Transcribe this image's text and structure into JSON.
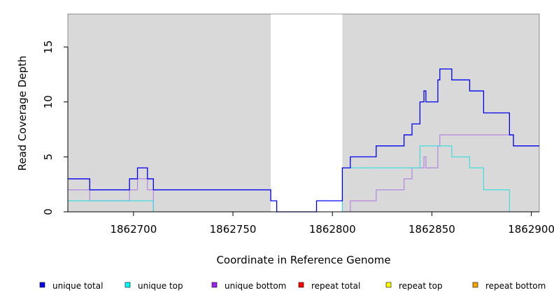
{
  "chart_data": {
    "type": "line",
    "step": true,
    "xlabel": "Coordinate in Reference Genome",
    "ylabel": "Read Coverage Depth",
    "xlim": [
      1862667,
      1862904
    ],
    "ylim": [
      0,
      18
    ],
    "x_ticks": [
      1862700,
      1862750,
      1862800,
      1862850,
      1862900
    ],
    "x_tick_labels": [
      "1862700",
      "1862750",
      "1862800",
      "1862850",
      "1862900"
    ],
    "y_ticks": [
      0,
      5,
      10,
      15
    ],
    "y_tick_labels": [
      "0",
      "5",
      "10",
      "15"
    ],
    "shaded_regions": [
      [
        1862667,
        1862769
      ],
      [
        1862805,
        1862904
      ]
    ],
    "shade_color": "#d9d9d9",
    "grid": false,
    "legend_position": "bottom",
    "series": [
      {
        "name": "unique total",
        "color": "#0000ee",
        "x": [
          1862667,
          1862678,
          1862698,
          1862702,
          1862707,
          1862710,
          1862769,
          1862772,
          1862792,
          1862805,
          1862809,
          1862822,
          1862836,
          1862840,
          1862844,
          1862846,
          1862847,
          1862853,
          1862854,
          1862860,
          1862869,
          1862876,
          1862889,
          1862891,
          1862904
        ],
        "y": [
          3,
          2,
          3,
          4,
          3,
          2,
          1,
          0,
          1,
          4,
          5,
          6,
          7,
          8,
          10,
          11,
          10,
          12,
          13,
          12,
          11,
          9,
          7,
          6,
          6
        ]
      },
      {
        "name": "unique top",
        "color": "#33dddd",
        "x": [
          1862667,
          1862678,
          1862710,
          1862805,
          1862844,
          1862860,
          1862869,
          1862876,
          1862889,
          1862904
        ],
        "y": [
          1,
          1,
          0,
          4,
          6,
          5,
          4,
          2,
          0,
          0
        ]
      },
      {
        "name": "unique bottom",
        "color": "#b07fe0",
        "x": [
          1862667,
          1862678,
          1862698,
          1862702,
          1862707,
          1862710,
          1862769,
          1862809,
          1862822,
          1862836,
          1862840,
          1862846,
          1862847,
          1862853,
          1862854,
          1862889,
          1862891,
          1862904
        ],
        "y": [
          2,
          1,
          2,
          3,
          2,
          0,
          0,
          1,
          2,
          3,
          4,
          5,
          4,
          6,
          7,
          7,
          6,
          6
        ]
      },
      {
        "name": "repeat total",
        "color": "#ff0000",
        "x": [
          1862667,
          1862904
        ],
        "y": [
          0,
          0
        ]
      },
      {
        "name": "repeat top",
        "color": "#ffff00",
        "x": [
          1862667,
          1862904
        ],
        "y": [
          0,
          0
        ]
      },
      {
        "name": "repeat bottom",
        "color": "#ffa500",
        "x": [
          1862667,
          1862904
        ],
        "y": [
          0,
          0
        ]
      }
    ]
  },
  "legend": [
    {
      "label": "unique total",
      "color": "#0000ee"
    },
    {
      "label": "unique top",
      "color": "#00ffff"
    },
    {
      "label": "unique bottom",
      "color": "#a020f0"
    },
    {
      "label": "repeat total",
      "color": "#ff0000"
    },
    {
      "label": "repeat top",
      "color": "#ffff00"
    },
    {
      "label": "repeat bottom",
      "color": "#ffa500"
    }
  ]
}
